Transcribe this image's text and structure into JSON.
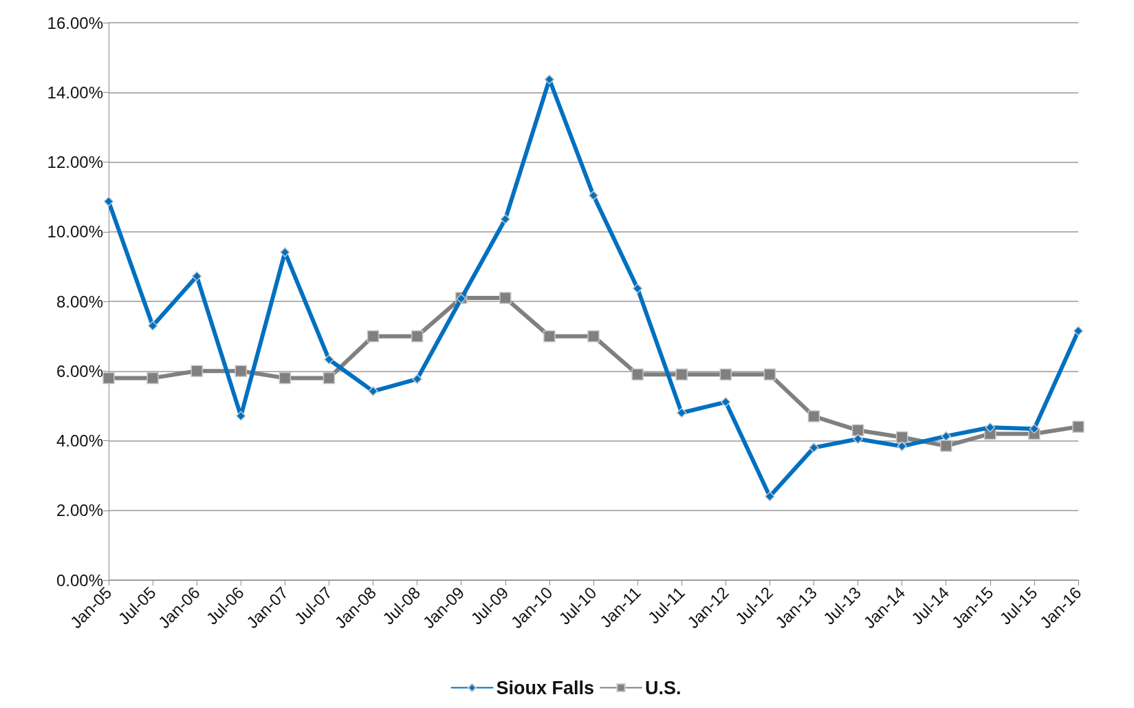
{
  "chart_data": {
    "type": "line",
    "categories": [
      "Jan-05",
      "Jul-05",
      "Jan-06",
      "Jul-06",
      "Jan-07",
      "Jul-07",
      "Jan-08",
      "Jul-08",
      "Jan-09",
      "Jul-09",
      "Jan-10",
      "Jul-10",
      "Jan-11",
      "Jul-11",
      "Jan-12",
      "Jul-12",
      "Jan-13",
      "Jul-13",
      "Jan-14",
      "Jul-14",
      "Jan-15",
      "Jul-15",
      "Jan-16"
    ],
    "series": [
      {
        "name": "Sioux Falls",
        "color": "#0070c0",
        "marker": "diamond",
        "values": [
          10.87,
          7.3,
          8.72,
          4.71,
          9.41,
          6.33,
          5.42,
          5.77,
          8.08,
          10.36,
          14.37,
          11.04,
          8.37,
          4.8,
          5.11,
          2.4,
          3.8,
          4.05,
          3.84,
          4.13,
          4.38,
          4.34,
          7.15
        ]
      },
      {
        "name": "U.S.",
        "color": "#808080",
        "marker": "square",
        "values": [
          5.8,
          5.8,
          6.0,
          6.0,
          5.8,
          5.8,
          7.0,
          7.0,
          8.1,
          8.1,
          7.0,
          7.0,
          5.9,
          5.9,
          5.9,
          5.9,
          4.7,
          4.3,
          4.1,
          3.85,
          4.2,
          4.2,
          4.4
        ]
      }
    ],
    "ylim": [
      0,
      16
    ],
    "yticks": [
      {
        "value": 0,
        "label": "0.00%"
      },
      {
        "value": 2,
        "label": "2.00%"
      },
      {
        "value": 4,
        "label": "4.00%"
      },
      {
        "value": 6,
        "label": "6.00%"
      },
      {
        "value": 8,
        "label": "8.00%"
      },
      {
        "value": 10,
        "label": "10.00%"
      },
      {
        "value": 12,
        "label": "12.00%"
      },
      {
        "value": 14,
        "label": "14.00%"
      },
      {
        "value": 16,
        "label": "16.00%"
      }
    ],
    "grid": "y",
    "legend": "bottom"
  }
}
